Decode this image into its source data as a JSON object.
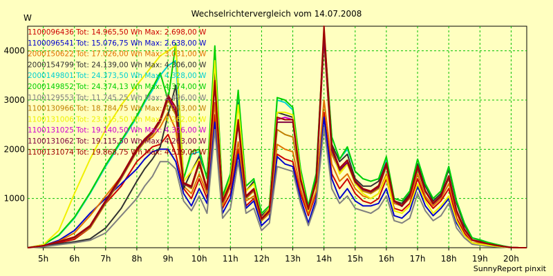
{
  "chart_data": {
    "type": "line",
    "title": "Wechselrichtervergleich vom 14.07.2008",
    "ylabel": "W",
    "xlabel": "",
    "footer": "SunnyReport pinxit",
    "grid": true,
    "legend_placement": "top-left",
    "xlim": [
      4.5,
      20.5
    ],
    "ylim": [
      0,
      4500
    ],
    "x_ticks": [
      {
        "value": 5,
        "label": "5h"
      },
      {
        "value": 6,
        "label": "6h"
      },
      {
        "value": 7,
        "label": "7h"
      },
      {
        "value": 8,
        "label": "8h"
      },
      {
        "value": 9,
        "label": "9h"
      },
      {
        "value": 10,
        "label": "10h"
      },
      {
        "value": 11,
        "label": "11h"
      },
      {
        "value": 12,
        "label": "12h"
      },
      {
        "value": 13,
        "label": "13h"
      },
      {
        "value": 14,
        "label": "14h"
      },
      {
        "value": 15,
        "label": "15h"
      },
      {
        "value": 16,
        "label": "16h"
      },
      {
        "value": 17,
        "label": "17h"
      },
      {
        "value": 18,
        "label": "18h"
      },
      {
        "value": 19,
        "label": "19h"
      },
      {
        "value": 20,
        "label": "20h"
      }
    ],
    "y_ticks": [
      {
        "value": 1000,
        "label": "1000"
      },
      {
        "value": 2000,
        "label": "2000"
      },
      {
        "value": 3000,
        "label": "3000"
      },
      {
        "value": 4000,
        "label": "4000"
      }
    ],
    "x": [
      4.5,
      5,
      5.5,
      6,
      6.5,
      7,
      7.5,
      8,
      8.25,
      8.5,
      8.75,
      9,
      9.25,
      9.5,
      9.75,
      10,
      10.25,
      10.5,
      10.75,
      11,
      11.25,
      11.5,
      11.75,
      12,
      12.25,
      12.5,
      12.75,
      13,
      13.25,
      13.5,
      13.75,
      14,
      14.25,
      14.5,
      14.75,
      15,
      15.25,
      15.5,
      15.75,
      16,
      16.25,
      16.5,
      16.75,
      17,
      17.25,
      17.5,
      17.75,
      18,
      18.25,
      18.5,
      18.75,
      19,
      19.25,
      19.5,
      19.75,
      20,
      20.25,
      20.5
    ],
    "series": [
      {
        "name": "1100096436 Tot: 14.965,50 Wh Max: 2.698,00 W",
        "color": "#cc0000",
        "values": [
          0,
          30,
          100,
          170,
          400,
          900,
          1250,
          1750,
          1900,
          2050,
          2100,
          2300,
          1900,
          1200,
          1000,
          1400,
          1000,
          2700,
          800,
          1100,
          2000,
          850,
          1000,
          550,
          700,
          1900,
          1800,
          1750,
          1100,
          650,
          1100,
          2750,
          1500,
          1200,
          1400,
          1100,
          950,
          900,
          1000,
          1400,
          800,
          750,
          900,
          1400,
          1000,
          800,
          950,
          1200,
          600,
          300,
          100,
          80,
          60,
          40,
          20,
          5,
          0,
          0
        ]
      },
      {
        "name": "1100096541 Tot: 15.076,75 Wh Max: 2.638,00 W",
        "color": "#0000cc",
        "values": [
          0,
          40,
          150,
          350,
          700,
          1000,
          1300,
          1600,
          1800,
          1950,
          2000,
          2000,
          1750,
          1100,
          850,
          1200,
          900,
          2550,
          700,
          1000,
          1900,
          800,
          950,
          450,
          600,
          1850,
          1700,
          1650,
          1000,
          500,
          1000,
          2650,
          1400,
          1000,
          1200,
          950,
          850,
          850,
          900,
          1200,
          650,
          600,
          750,
          1250,
          850,
          650,
          800,
          1000,
          500,
          250,
          100,
          70,
          50,
          30,
          15,
          5,
          0,
          0
        ]
      },
      {
        "name": "2000150622 Tot: 17.026,00 Wh Max: 3.031,00 W",
        "color": "#e07000",
        "values": [
          0,
          40,
          130,
          300,
          650,
          1050,
          1450,
          1950,
          2150,
          2250,
          2450,
          2750,
          2400,
          1250,
          1100,
          1500,
          1100,
          2950,
          850,
          1250,
          2150,
          950,
          1050,
          550,
          700,
          2100,
          2000,
          1950,
          1200,
          700,
          1150,
          3000,
          1700,
          1350,
          1500,
          1200,
          1050,
          1000,
          1100,
          1500,
          900,
          850,
          1000,
          1500,
          1050,
          850,
          1000,
          1300,
          700,
          350,
          150,
          100,
          70,
          50,
          25,
          5,
          0,
          0
        ]
      },
      {
        "name": "2000154799 Tot: 24.139,00 Wh Max: 4.306,00 W",
        "color": "#303030",
        "values": [
          0,
          30,
          80,
          120,
          180,
          400,
          800,
          1350,
          1600,
          1800,
          2050,
          2700,
          3300,
          1200,
          1550,
          1850,
          1450,
          3650,
          1000,
          1400,
          2950,
          1150,
          1350,
          650,
          800,
          2750,
          2700,
          2650,
          1500,
          800,
          1400,
          4300,
          2100,
          1750,
          1900,
          1400,
          1250,
          1250,
          1350,
          1750,
          950,
          900,
          1100,
          1700,
          1250,
          950,
          1100,
          1600,
          900,
          450,
          200,
          150,
          100,
          60,
          30,
          5,
          0,
          0
        ]
      },
      {
        "name": "2000149801 Tot: 24.373,50 Wh Max: 4.328,00 W",
        "color": "#00d0d0",
        "values": [
          0,
          60,
          250,
          600,
          1100,
          1650,
          2150,
          2650,
          2950,
          3200,
          3500,
          3700,
          3800,
          1400,
          1900,
          1950,
          1400,
          4000,
          1050,
          1500,
          3150,
          1250,
          1400,
          700,
          850,
          3000,
          2950,
          2800,
          1600,
          850,
          1500,
          4350,
          2250,
          1800,
          2000,
          1550,
          1400,
          1350,
          1400,
          1800,
          1000,
          950,
          1150,
          1800,
          1300,
          1000,
          1150,
          1650,
          950,
          500,
          200,
          160,
          110,
          70,
          35,
          5,
          0,
          0
        ]
      },
      {
        "name": "2000149852 Tot: 24.374,13 Wh Max: 4.374,00 W",
        "color": "#00d000",
        "values": [
          0,
          60,
          260,
          620,
          1120,
          1680,
          2180,
          2680,
          2980,
          3250,
          3550,
          3000,
          4150,
          1400,
          1950,
          2000,
          1400,
          4100,
          1050,
          1500,
          3200,
          1250,
          1400,
          700,
          850,
          3050,
          3000,
          2850,
          1600,
          850,
          1500,
          4400,
          2250,
          1800,
          2050,
          1550,
          1400,
          1350,
          1400,
          1850,
          1000,
          950,
          1150,
          1800,
          1300,
          1000,
          1150,
          1650,
          950,
          500,
          200,
          160,
          110,
          70,
          35,
          5,
          0,
          0
        ]
      },
      {
        "name": "1100129553 Tot: 11.745,25 Wh Max: 2.496,00 W",
        "color": "#808080",
        "values": [
          0,
          20,
          60,
          100,
          150,
          300,
          650,
          1000,
          1250,
          1450,
          1750,
          1750,
          1600,
          950,
          750,
          1050,
          700,
          2400,
          600,
          800,
          1750,
          700,
          800,
          350,
          500,
          1650,
          1600,
          1550,
          900,
          450,
          900,
          2450,
          1200,
          900,
          1050,
          800,
          750,
          700,
          800,
          1050,
          550,
          500,
          600,
          1100,
          750,
          550,
          650,
          900,
          400,
          200,
          70,
          50,
          30,
          20,
          10,
          0,
          0,
          0
        ]
      },
      {
        "name": "1100130966 Tot: 18.784,75 Wh Max: 4.243,00 W",
        "color": "#c08000",
        "values": [
          0,
          40,
          120,
          200,
          400,
          900,
          1400,
          1950,
          2150,
          2300,
          2550,
          3000,
          2700,
          1300,
          1200,
          1700,
          1150,
          3300,
          900,
          1300,
          2500,
          1000,
          1150,
          550,
          750,
          2400,
          2300,
          2250,
          1350,
          750,
          1300,
          4200,
          1900,
          1550,
          1700,
          1300,
          1150,
          1100,
          1200,
          1650,
          950,
          850,
          1050,
          1600,
          1150,
          900,
          1050,
          1400,
          750,
          380,
          160,
          120,
          80,
          50,
          25,
          5,
          0,
          0
        ]
      },
      {
        "name": "1100131006 Tot: 23.015,50 Wh Max: 4.262,00 W",
        "color": "#f0f000",
        "values": [
          0,
          60,
          350,
          1100,
          1800,
          2400,
          2900,
          3300,
          3500,
          3700,
          3900,
          4000,
          4100,
          1350,
          1550,
          1800,
          1200,
          3800,
          950,
          1400,
          2900,
          1150,
          1300,
          600,
          800,
          2750,
          2750,
          2700,
          1500,
          750,
          1300,
          4250,
          2000,
          1500,
          1700,
          1300,
          1100,
          1000,
          1100,
          1450,
          750,
          700,
          850,
          1300,
          950,
          700,
          850,
          1050,
          550,
          250,
          100,
          70,
          50,
          30,
          15,
          5,
          0,
          0
        ]
      },
      {
        "name": "1100131025 Tot: 19.140,50 Wh Max: 4.326,00 W",
        "color": "#d000d0",
        "values": [
          0,
          40,
          120,
          220,
          450,
          950,
          1450,
          2000,
          2200,
          2350,
          2600,
          3100,
          2800,
          1300,
          1250,
          1750,
          1200,
          3350,
          950,
          1300,
          2550,
          1050,
          1200,
          600,
          750,
          2600,
          2650,
          2600,
          1400,
          800,
          1350,
          4300,
          2000,
          1600,
          1750,
          1350,
          1200,
          1150,
          1250,
          1700,
          950,
          850,
          1050,
          1650,
          1150,
          900,
          1050,
          1450,
          750,
          380,
          160,
          120,
          80,
          50,
          25,
          5,
          0,
          0
        ]
      },
      {
        "name": "1100131062 Tot: 19.115,50 Wh Max: 4.263,00 W",
        "color": "#800040",
        "values": [
          0,
          40,
          120,
          210,
          430,
          930,
          1430,
          1980,
          2180,
          2330,
          2580,
          3050,
          2750,
          1300,
          1230,
          1720,
          1180,
          3320,
          930,
          1300,
          2520,
          1030,
          1180,
          580,
          740,
          2550,
          2550,
          2550,
          1380,
          780,
          1330,
          4250,
          1980,
          1580,
          1730,
          1330,
          1180,
          1130,
          1230,
          1680,
          940,
          840,
          1040,
          1630,
          1140,
          890,
          1040,
          1430,
          740,
          370,
          155,
          115,
          78,
          48,
          24,
          5,
          0,
          0
        ]
      },
      {
        "name": "1100131074 Tot: 19.868,75 Wh Max: 4.519,00 W",
        "color": "#a00000",
        "values": [
          0,
          40,
          125,
          220,
          450,
          960,
          1460,
          2010,
          2210,
          2360,
          2610,
          3100,
          2850,
          1320,
          1250,
          1750,
          1200,
          3400,
          950,
          1320,
          2600,
          1050,
          1200,
          590,
          760,
          2650,
          2600,
          2600,
          1400,
          800,
          1360,
          4500,
          2050,
          1620,
          1780,
          1360,
          1200,
          1150,
          1260,
          1720,
          960,
          860,
          1060,
          1660,
          1160,
          910,
          1060,
          1460,
          760,
          380,
          160,
          120,
          80,
          50,
          25,
          5,
          0,
          0
        ]
      }
    ]
  }
}
